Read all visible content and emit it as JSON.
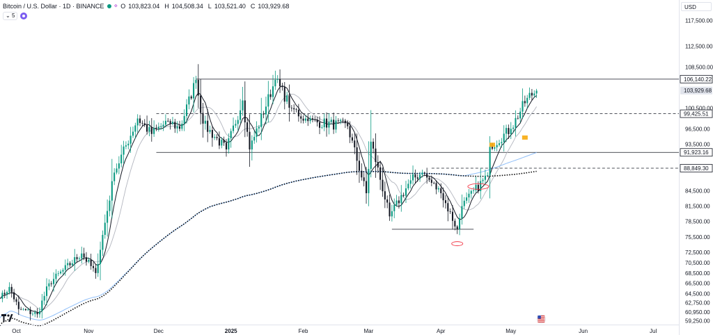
{
  "header": {
    "symbol": "Bitcoin / U.S. Dollar · 1D · BINANCE",
    "ohlc": [
      {
        "k": "O",
        "v": "103,823.04"
      },
      {
        "k": "H",
        "v": "104,508.34"
      },
      {
        "k": "L",
        "v": "103,521.40"
      },
      {
        "k": "C",
        "v": "103,929.68"
      }
    ],
    "indicator_count": "5",
    "currency": "USD"
  },
  "colors": {
    "up": "#089981",
    "down": "#131722",
    "ma_fast": "#131722",
    "ma_mid": "#b2b5be",
    "ma_blue": "#90bff9",
    "ma_dotted": "#000000",
    "highlight": "#f7a600",
    "annotation_red": "#f23645"
  },
  "chart_data": {
    "type": "candlestick",
    "y_range": [
      58500,
      121500
    ],
    "x_range": [
      "2024-09-24",
      "2025-07-12"
    ],
    "y_ticks": [
      {
        "v": 117500,
        "label": "117,500.00"
      },
      {
        "v": 112500,
        "label": "112,500.00"
      },
      {
        "v": 108500,
        "label": "108,500.00"
      },
      {
        "v": 100500,
        "label": "100,500.00"
      },
      {
        "v": 96500,
        "label": "96,500.00"
      },
      {
        "v": 93500,
        "label": "93,500.00"
      },
      {
        "v": 84500,
        "label": "84,500.00"
      },
      {
        "v": 81500,
        "label": "81,500.00"
      },
      {
        "v": 78500,
        "label": "78,500.00"
      },
      {
        "v": 75500,
        "label": "75,500.00"
      },
      {
        "v": 72500,
        "label": "72,500.00"
      },
      {
        "v": 70500,
        "label": "70,500.00"
      },
      {
        "v": 68500,
        "label": "68,500.00"
      },
      {
        "v": 66500,
        "label": "66,500.00"
      },
      {
        "v": 64500,
        "label": "64,500.00"
      },
      {
        "v": 62750,
        "label": "62,750.00"
      },
      {
        "v": 60950,
        "label": "60,950.00"
      },
      {
        "v": 59250,
        "label": "59,250.00"
      }
    ],
    "x_ticks": [
      {
        "date": "2024-10-01",
        "label": "Oct"
      },
      {
        "date": "2024-11-01",
        "label": "Nov"
      },
      {
        "date": "2024-12-01",
        "label": "Dec"
      },
      {
        "date": "2025-01-01",
        "label": "2025"
      },
      {
        "date": "2025-02-01",
        "label": "Feb"
      },
      {
        "date": "2025-03-01",
        "label": "Mar"
      },
      {
        "date": "2025-04-01",
        "label": "Apr"
      },
      {
        "date": "2025-05-01",
        "label": "May"
      },
      {
        "date": "2025-06-01",
        "label": "Jun"
      },
      {
        "date": "2025-07-01",
        "label": "Jul"
      }
    ],
    "price_labels": [
      {
        "v": 106140.22,
        "label": "106,140.22",
        "style": "solid"
      },
      {
        "v": 103929.68,
        "label": "103,929.68",
        "style": "current"
      },
      {
        "v": 99425.51,
        "label": "99,425.51",
        "style": "dashed"
      },
      {
        "v": 91923.16,
        "label": "91,923.16",
        "style": "solid"
      },
      {
        "v": 88849.3,
        "label": "88,849.30",
        "style": "dashed"
      }
    ],
    "horizontal_lines": [
      {
        "v": 106140.22,
        "from": "2024-12-17",
        "style": "solid"
      },
      {
        "v": 99425.51,
        "from": "2024-11-30",
        "style": "dashed"
      },
      {
        "v": 91923.16,
        "from": "2024-11-30",
        "style": "solid"
      },
      {
        "v": 88849.3,
        "from": "2025-03-28",
        "style": "dashed"
      },
      {
        "v": 77000,
        "from": "2025-03-11",
        "to": "2025-04-15",
        "style": "solid"
      }
    ],
    "candle_anchors": [
      [
        "2024-09-24",
        63500
      ],
      [
        "2024-09-28",
        65800
      ],
      [
        "2024-10-02",
        61500
      ],
      [
        "2024-10-10",
        60500
      ],
      [
        "2024-10-15",
        66500
      ],
      [
        "2024-10-29",
        72300
      ],
      [
        "2024-11-04",
        68500
      ],
      [
        "2024-11-12",
        88000
      ],
      [
        "2024-11-22",
        98500
      ],
      [
        "2024-11-28",
        95500
      ],
      [
        "2024-12-05",
        98000
      ],
      [
        "2024-12-10",
        96500
      ],
      [
        "2024-12-17",
        106000
      ],
      [
        "2024-12-20",
        97500
      ],
      [
        "2024-12-30",
        92500
      ],
      [
        "2025-01-06",
        102000
      ],
      [
        "2025-01-09",
        92500
      ],
      [
        "2025-01-20",
        106000
      ],
      [
        "2025-01-27",
        100500
      ],
      [
        "2025-02-03",
        98000
      ],
      [
        "2025-02-20",
        97000
      ],
      [
        "2025-02-28",
        84000
      ],
      [
        "2025-03-02",
        94000
      ],
      [
        "2025-03-10",
        79500
      ],
      [
        "2025-03-19",
        86500
      ],
      [
        "2025-03-24",
        88000
      ],
      [
        "2025-04-01",
        84000
      ],
      [
        "2025-04-08",
        77000
      ],
      [
        "2025-04-10",
        81500
      ],
      [
        "2025-04-21",
        87500
      ],
      [
        "2025-04-22",
        93000
      ],
      [
        "2025-05-01",
        96500
      ],
      [
        "2025-05-08",
        102500
      ],
      [
        "2025-05-12",
        103900
      ]
    ],
    "annotations": [
      {
        "type": "highlight",
        "date": "2025-04-23",
        "v": 93400
      },
      {
        "type": "highlight",
        "date": "2025-05-07",
        "v": 94800
      },
      {
        "type": "ellipse",
        "date": "2025-04-08",
        "v": 74200
      },
      {
        "type": "ellipse",
        "date": "2025-04-17",
        "v": 85300
      }
    ]
  }
}
